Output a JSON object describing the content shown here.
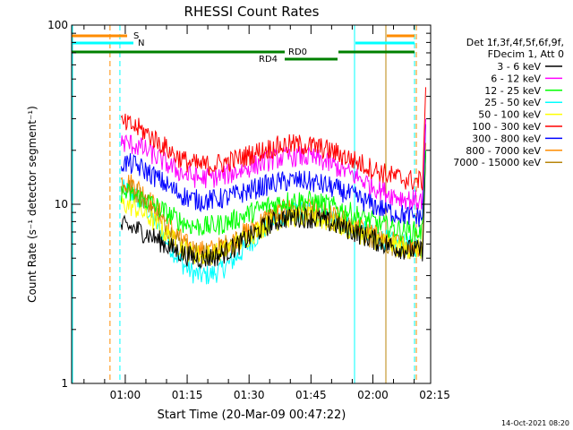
{
  "chart_data": {
    "type": "line",
    "title": "RHESSI Count Rates",
    "xlabel": "Start Time (20-Mar-09 00:47:22)",
    "ylabel": "Count Rate (s⁻¹ detector segment⁻¹)",
    "yscale": "log",
    "ylim": [
      1,
      100
    ],
    "xlim_minutes": [
      47,
      134
    ],
    "x_ticks": [
      "01:00",
      "01:15",
      "01:30",
      "01:45",
      "02:00",
      "02:15"
    ],
    "y_ticks": [
      "1",
      "10",
      "100"
    ],
    "legend_header": [
      "Det 1f,3f,4f,5f,6f,9f,",
      "FDecim 1, Att 0"
    ],
    "legend_position": "right",
    "series": [
      {
        "name": "3 - 6 keV",
        "color": "#000000",
        "start": 7.5,
        "peak": 9.0,
        "valley": 5.0,
        "mid": 8.5,
        "end": 5.5,
        "flare": 20
      },
      {
        "name": "6 - 12 keV",
        "color": "#ff00ff",
        "start": 22,
        "peak": 24,
        "valley": 14,
        "mid": 18.5,
        "end": 10.5,
        "flare": 30
      },
      {
        "name": "12 - 25 keV",
        "color": "#00ff00",
        "start": 11.5,
        "peak": 12,
        "valley": 7.5,
        "mid": 10.5,
        "end": 7.0,
        "flare": 20
      },
      {
        "name": "25 - 50 keV",
        "color": "#00ffff",
        "start": 12,
        "peak": 10,
        "valley": 4.0,
        "mid": 9.0,
        "end": 5.8,
        "flare": 20
      },
      {
        "name": "50 - 100 keV",
        "color": "#ffff00",
        "start": 10,
        "peak": 9,
        "valley": 5.2,
        "mid": 8.5,
        "end": 5.6,
        "flare": 20
      },
      {
        "name": "100 - 300 keV",
        "color": "#ff0000",
        "start": 28,
        "peak": 26,
        "valley": 16.5,
        "mid": 21.5,
        "end": 13.5,
        "flare": 45
      },
      {
        "name": "300 - 800 keV",
        "color": "#0000ff",
        "start": 17,
        "peak": 17,
        "valley": 10.5,
        "mid": 13.5,
        "end": 8.5,
        "flare": 28
      },
      {
        "name": "800 - 7000 keV",
        "color": "#ff8c00",
        "start": 13.5,
        "peak": 12,
        "valley": 5.5,
        "mid": 9.5,
        "end": 5.8,
        "flare": 22
      },
      {
        "name": "7000 - 15000 keV",
        "color": "#b8860b",
        "start": 12.5,
        "peak": 11,
        "valley": 5.3,
        "mid": 9.0,
        "end": 5.5,
        "flare": 20
      }
    ],
    "annotations": {
      "attenuator_label": "S",
      "attenuator_color": "#ff8c00",
      "night_label": "N",
      "night_color": "#00ffff",
      "decim_labels": [
        "RD0",
        "RD4"
      ],
      "decim_color": "#008000"
    },
    "timestamp": "14-Oct-2021 08:20"
  }
}
